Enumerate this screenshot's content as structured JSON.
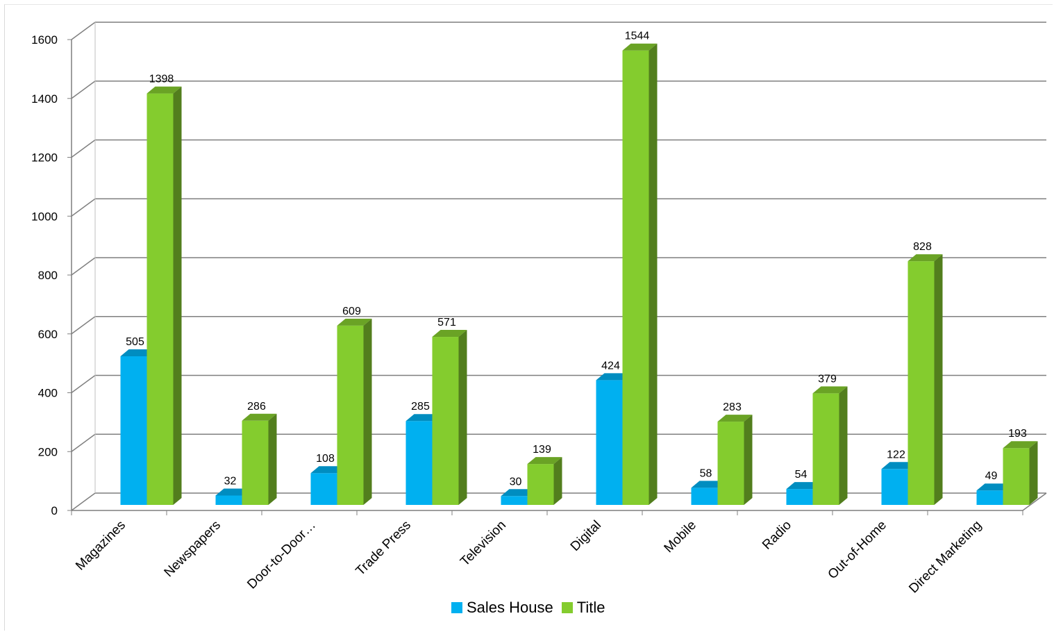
{
  "chart_data": {
    "type": "bar",
    "style": "3d-clustered-column",
    "categories": [
      "Magazines",
      "Newspapers",
      "Door-to-Door…",
      "Trade Press",
      "Television",
      "Digital",
      "Mobile",
      "Radio",
      "Out-of-Home",
      "Direct Marketing"
    ],
    "series": [
      {
        "name": "Sales House",
        "color": "#00b0f0",
        "values": [
          505,
          32,
          108,
          285,
          30,
          424,
          58,
          54,
          122,
          49
        ]
      },
      {
        "name": "Title",
        "color": "#84cc2e",
        "values": [
          1398,
          286,
          609,
          571,
          139,
          1544,
          283,
          379,
          828,
          193
        ]
      }
    ],
    "yticks": [
      "0",
      "200",
      "400",
      "600",
      "800",
      "1000",
      "1200",
      "1400",
      "1600"
    ],
    "ylim": [
      0,
      1600
    ],
    "grid": true,
    "legend_position": "bottom"
  }
}
